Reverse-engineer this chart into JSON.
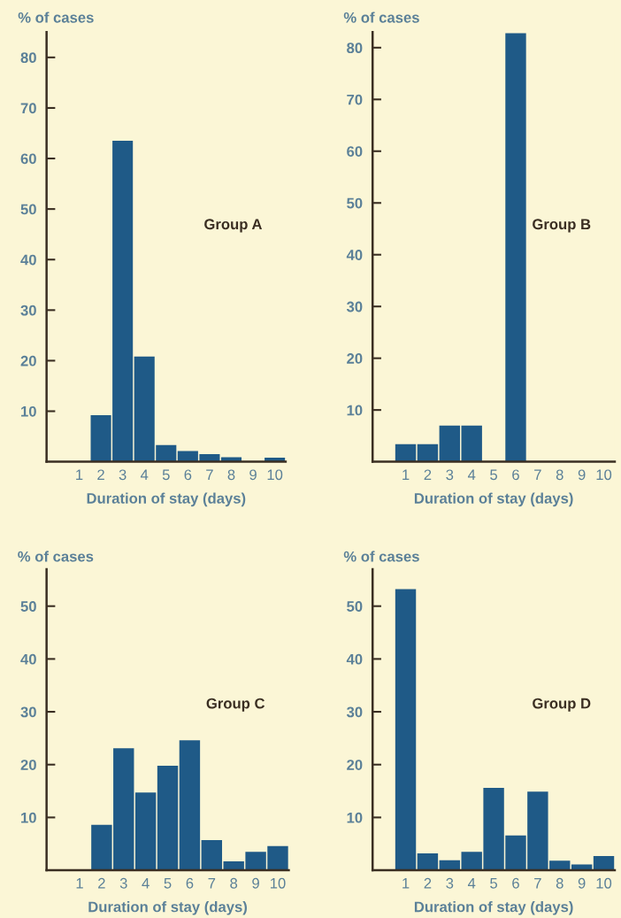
{
  "chart_data": [
    {
      "type": "bar",
      "title": "Group A",
      "ylabel": "% of cases",
      "xlabel": "Duration of stay (days)",
      "categories": [
        "1",
        "2",
        "3",
        "4",
        "5",
        "6",
        "7",
        "8",
        "9",
        "10"
      ],
      "values": [
        0,
        9.2,
        63.5,
        20.8,
        3.3,
        2.1,
        1.5,
        0.9,
        0,
        0.8
      ],
      "color": "#1f5a87",
      "ylim": [
        0,
        85
      ],
      "yticks": [
        10,
        20,
        30,
        40,
        50,
        60,
        70,
        80
      ],
      "grid": false,
      "legend": false
    },
    {
      "type": "bar",
      "title": "Group B",
      "ylabel": "% of cases",
      "xlabel": "Duration of stay (days)",
      "categories": [
        "1",
        "2",
        "3",
        "4",
        "5",
        "6",
        "7",
        "8",
        "9",
        "10"
      ],
      "values": [
        3.4,
        3.4,
        7.0,
        7.0,
        0,
        82.8,
        0,
        0,
        0,
        0
      ],
      "color": "#1f5a87",
      "ylim": [
        0,
        83
      ],
      "yticks": [
        10,
        20,
        30,
        40,
        50,
        60,
        70,
        80
      ],
      "grid": false,
      "legend": false
    },
    {
      "type": "bar",
      "title": "Group C",
      "ylabel": "% of cases",
      "xlabel": "Duration of stay (days)",
      "categories": [
        "1",
        "2",
        "3",
        "4",
        "5",
        "6",
        "7",
        "8",
        "9",
        "10"
      ],
      "values": [
        0,
        8.6,
        23.1,
        14.7,
        19.8,
        24.6,
        5.7,
        1.7,
        3.5,
        4.6
      ],
      "color": "#1f5a87",
      "ylim": [
        0,
        57
      ],
      "yticks": [
        10,
        20,
        30,
        40,
        50
      ],
      "grid": false,
      "legend": false
    },
    {
      "type": "bar",
      "title": "Group D",
      "ylabel": "% of cases",
      "xlabel": "Duration of stay (days)",
      "categories": [
        "1",
        "2",
        "3",
        "4",
        "5",
        "6",
        "7",
        "8",
        "9",
        "10"
      ],
      "values": [
        53.2,
        3.2,
        1.9,
        3.5,
        15.6,
        6.6,
        14.9,
        1.8,
        1.1,
        2.7
      ],
      "color": "#1f5a87",
      "ylim": [
        0,
        57
      ],
      "yticks": [
        10,
        20,
        30,
        40,
        50
      ],
      "grid": false,
      "legend": false
    }
  ]
}
